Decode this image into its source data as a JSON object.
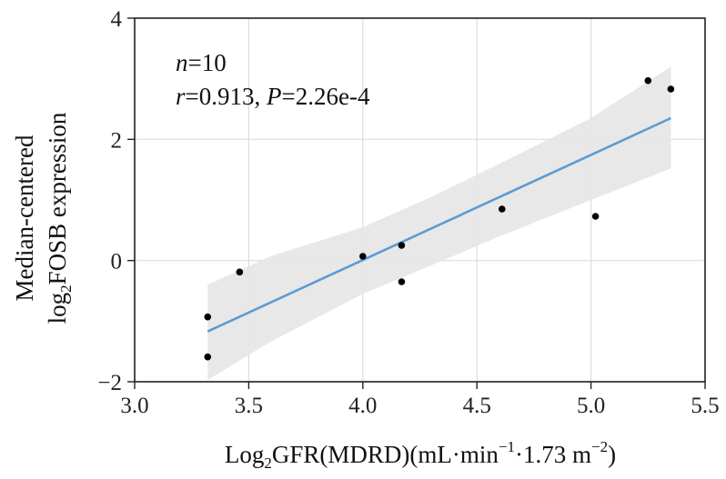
{
  "chart_data": {
    "type": "scatter",
    "xlabel": {
      "prefix": "Log",
      "sub": "2",
      "main": "GFR(MDRD)(mL·min",
      "sup1": "−1",
      "mid": "·1.73 m",
      "sup2": "−2",
      "end": ")"
    },
    "ylabel": {
      "line1": "Median-centered",
      "line2_prefix": "log",
      "line2_sub": "2",
      "line2_main": "FOSB expression"
    },
    "xlim": [
      3.0,
      5.5
    ],
    "ylim": [
      -2,
      4
    ],
    "xticks": [
      3.0,
      3.5,
      4.0,
      4.5,
      5.0,
      5.5
    ],
    "xtick_labels": [
      "3.0",
      "3.5",
      "4.0",
      "4.5",
      "5.0",
      "5.5"
    ],
    "yticks": [
      -2,
      0,
      2,
      4
    ],
    "ytick_labels": [
      "−2",
      "0",
      "2",
      "4"
    ],
    "grid": true,
    "points": [
      {
        "x": 3.32,
        "y": -0.93
      },
      {
        "x": 3.32,
        "y": -1.59
      },
      {
        "x": 3.46,
        "y": -0.19
      },
      {
        "x": 4.0,
        "y": 0.07
      },
      {
        "x": 4.17,
        "y": 0.25
      },
      {
        "x": 4.17,
        "y": -0.35
      },
      {
        "x": 4.61,
        "y": 0.85
      },
      {
        "x": 5.02,
        "y": 0.73
      },
      {
        "x": 5.25,
        "y": 2.97
      },
      {
        "x": 5.35,
        "y": 2.83
      }
    ],
    "fit_line": {
      "x": [
        3.32,
        5.35
      ],
      "y": [
        -1.17,
        2.35
      ],
      "color": "#5b9bd5"
    },
    "confidence_band": {
      "x": [
        3.32,
        3.6,
        4.0,
        4.3,
        4.6,
        5.0,
        5.35
      ],
      "upper": [
        -0.4,
        0.08,
        0.55,
        1.05,
        1.6,
        2.35,
        3.2
      ],
      "lower": [
        -1.97,
        -1.33,
        -0.55,
        -0.08,
        0.4,
        1.0,
        1.52
      ],
      "color": "#e6e6e6"
    },
    "point_color": "#000000",
    "annotations": {
      "n_label": "n",
      "n_eq": "=10",
      "r_label": "r",
      "r_eq": "=0.913, ",
      "p_label": "P",
      "p_eq": "=2.26e-4"
    }
  }
}
